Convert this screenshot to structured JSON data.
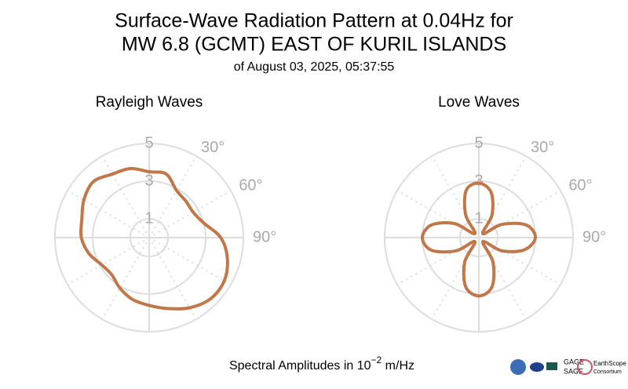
{
  "title_lines": [
    "Surface-Wave Radiation Pattern at 0.04Hz for",
    "MW 6.8 (GCMT) EAST OF KURIL ISLANDS"
  ],
  "subtitle": "of August 03, 2025, 05:37:55",
  "footer": {
    "text": "Spectral Amplitudes in 10",
    "sup": "−2",
    "after": " m/Hz"
  },
  "logos": [
    "GAGE",
    "SAGE",
    "EarthScope",
    "Consortium"
  ],
  "chart_data": [
    {
      "type": "polar",
      "title": "Rayleigh Waves",
      "color": "#c0784a",
      "theta": [
        0,
        15,
        30,
        45,
        60,
        75,
        90,
        105,
        120,
        135,
        150,
        165,
        180,
        195,
        210,
        225,
        240,
        255,
        270,
        285,
        300,
        315,
        330,
        345
      ],
      "r": [
        3.5,
        3.5,
        2.9,
        2.75,
        2.7,
        3.0,
        3.8,
        4.3,
        4.6,
        4.6,
        4.3,
        3.9,
        3.6,
        3.4,
        3.1,
        2.8,
        2.9,
        3.3,
        3.6,
        3.7,
        4.0,
        4.2,
        3.9,
        3.8
      ],
      "rlim": [
        0,
        5
      ],
      "rticks": [
        1,
        3,
        5
      ],
      "thetaticks": [
        {
          "value": 30,
          "label": "30°"
        },
        {
          "value": 60,
          "label": "60°"
        },
        {
          "value": 90,
          "label": "90°"
        }
      ]
    },
    {
      "type": "polar",
      "title": "Love Waves",
      "color": "#c0784a",
      "theta": [
        0,
        15,
        30,
        45,
        60,
        75,
        90,
        105,
        120,
        135,
        150,
        165,
        180,
        195,
        210,
        225,
        240,
        255,
        270,
        285,
        300,
        315,
        330,
        345
      ],
      "r": [
        2.9,
        2.5,
        1.4,
        0.3,
        1.4,
        2.6,
        3.0,
        2.5,
        1.4,
        0.3,
        1.5,
        2.7,
        3.1,
        2.7,
        1.5,
        0.3,
        1.4,
        2.6,
        3.0,
        2.6,
        1.5,
        0.3,
        1.4,
        2.6
      ],
      "rlim": [
        0,
        5
      ],
      "rticks": [
        1,
        3,
        5
      ],
      "thetaticks": [
        {
          "value": 30,
          "label": "30°"
        },
        {
          "value": 60,
          "label": "60°"
        },
        {
          "value": 90,
          "label": "90°"
        }
      ]
    }
  ]
}
